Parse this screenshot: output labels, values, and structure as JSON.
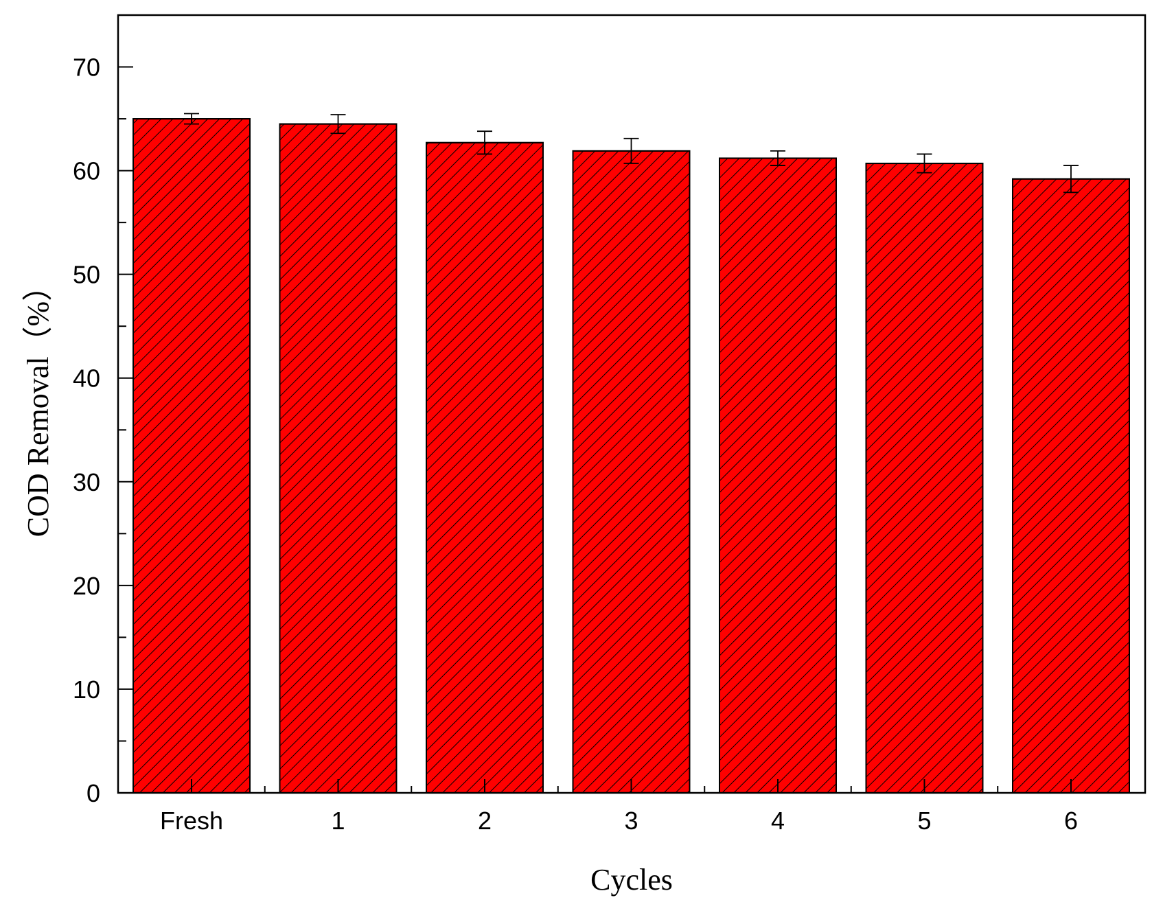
{
  "chart_data": {
    "type": "bar",
    "title": "",
    "xlabel": "Cycles",
    "ylabel": "COD Removal（%）",
    "categories": [
      "Fresh",
      "1",
      "2",
      "3",
      "4",
      "5",
      "6"
    ],
    "values": [
      65.0,
      64.5,
      62.7,
      61.9,
      61.2,
      60.7,
      59.2
    ],
    "errors": [
      0.5,
      0.9,
      1.1,
      1.2,
      0.7,
      0.9,
      1.3
    ],
    "ylim": [
      0,
      75
    ],
    "yticks": [
      0,
      10,
      20,
      30,
      40,
      50,
      60,
      70
    ],
    "grid": false,
    "legend": "none",
    "bar_color": "#ff0000",
    "hatch": "diagonal-lines",
    "hatch_color": "#000000"
  }
}
